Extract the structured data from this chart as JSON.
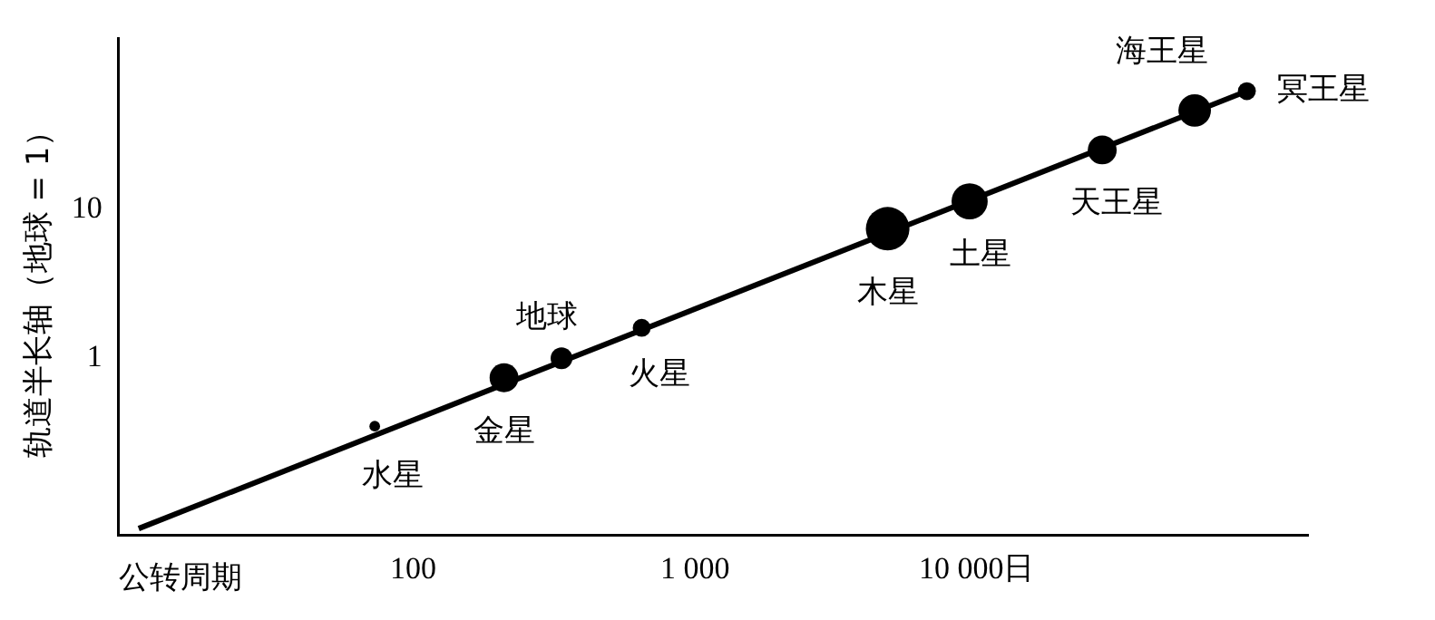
{
  "chart_data": {
    "type": "bubble",
    "xlabel": "公转周期",
    "ylabel": "轨道半长轴（地球 = 1）",
    "log": "xy",
    "grid": false,
    "legend": false,
    "xlim": [
      9,
      150000
    ],
    "ylim": [
      0.065,
      140
    ],
    "xticks": [
      100,
      {
        "value": 1000,
        "label": "1 000"
      },
      {
        "value": 10000,
        "label": "10 000日"
      }
    ],
    "yticks": [
      1,
      10
    ],
    "series": [
      {
        "type": "line",
        "marker": "none",
        "line_style": "solid",
        "color": "#000000",
        "x": [
          10.6,
          91000
        ],
        "values": [
          0.072,
          62
        ]
      },
      {
        "color": "#000000",
        "x": [
          73,
          210,
          336,
          647,
          4830,
          9440,
          27900,
          59400,
          91000
        ],
        "values": [
          0.35,
          0.74,
          1,
          1.6,
          7.4,
          11.3,
          25,
          46,
          62
        ],
        "sizes": [
          0.06,
          0.44,
          0.25,
          0.17,
          1,
          0.69,
          0.44,
          0.56,
          0.17
        ]
      }
    ],
    "annotations": [
      {
        "text": "水星",
        "x": 73,
        "y": 0.35
      },
      {
        "text": "金星",
        "x": 210,
        "y": 0.74
      },
      {
        "text": "地球",
        "x": 336,
        "y": 1
      },
      {
        "text": "火星",
        "x": 647,
        "y": 1.6
      },
      {
        "text": "木星",
        "x": 4830,
        "y": 7.4
      },
      {
        "text": "土星",
        "x": 9440,
        "y": 11.3
      },
      {
        "text": "天王星",
        "x": 27900,
        "y": 25
      },
      {
        "text": "海王星",
        "x": 59400,
        "y": 46
      },
      {
        "text": "冥王星",
        "x": 91000,
        "y": 62
      }
    ]
  }
}
